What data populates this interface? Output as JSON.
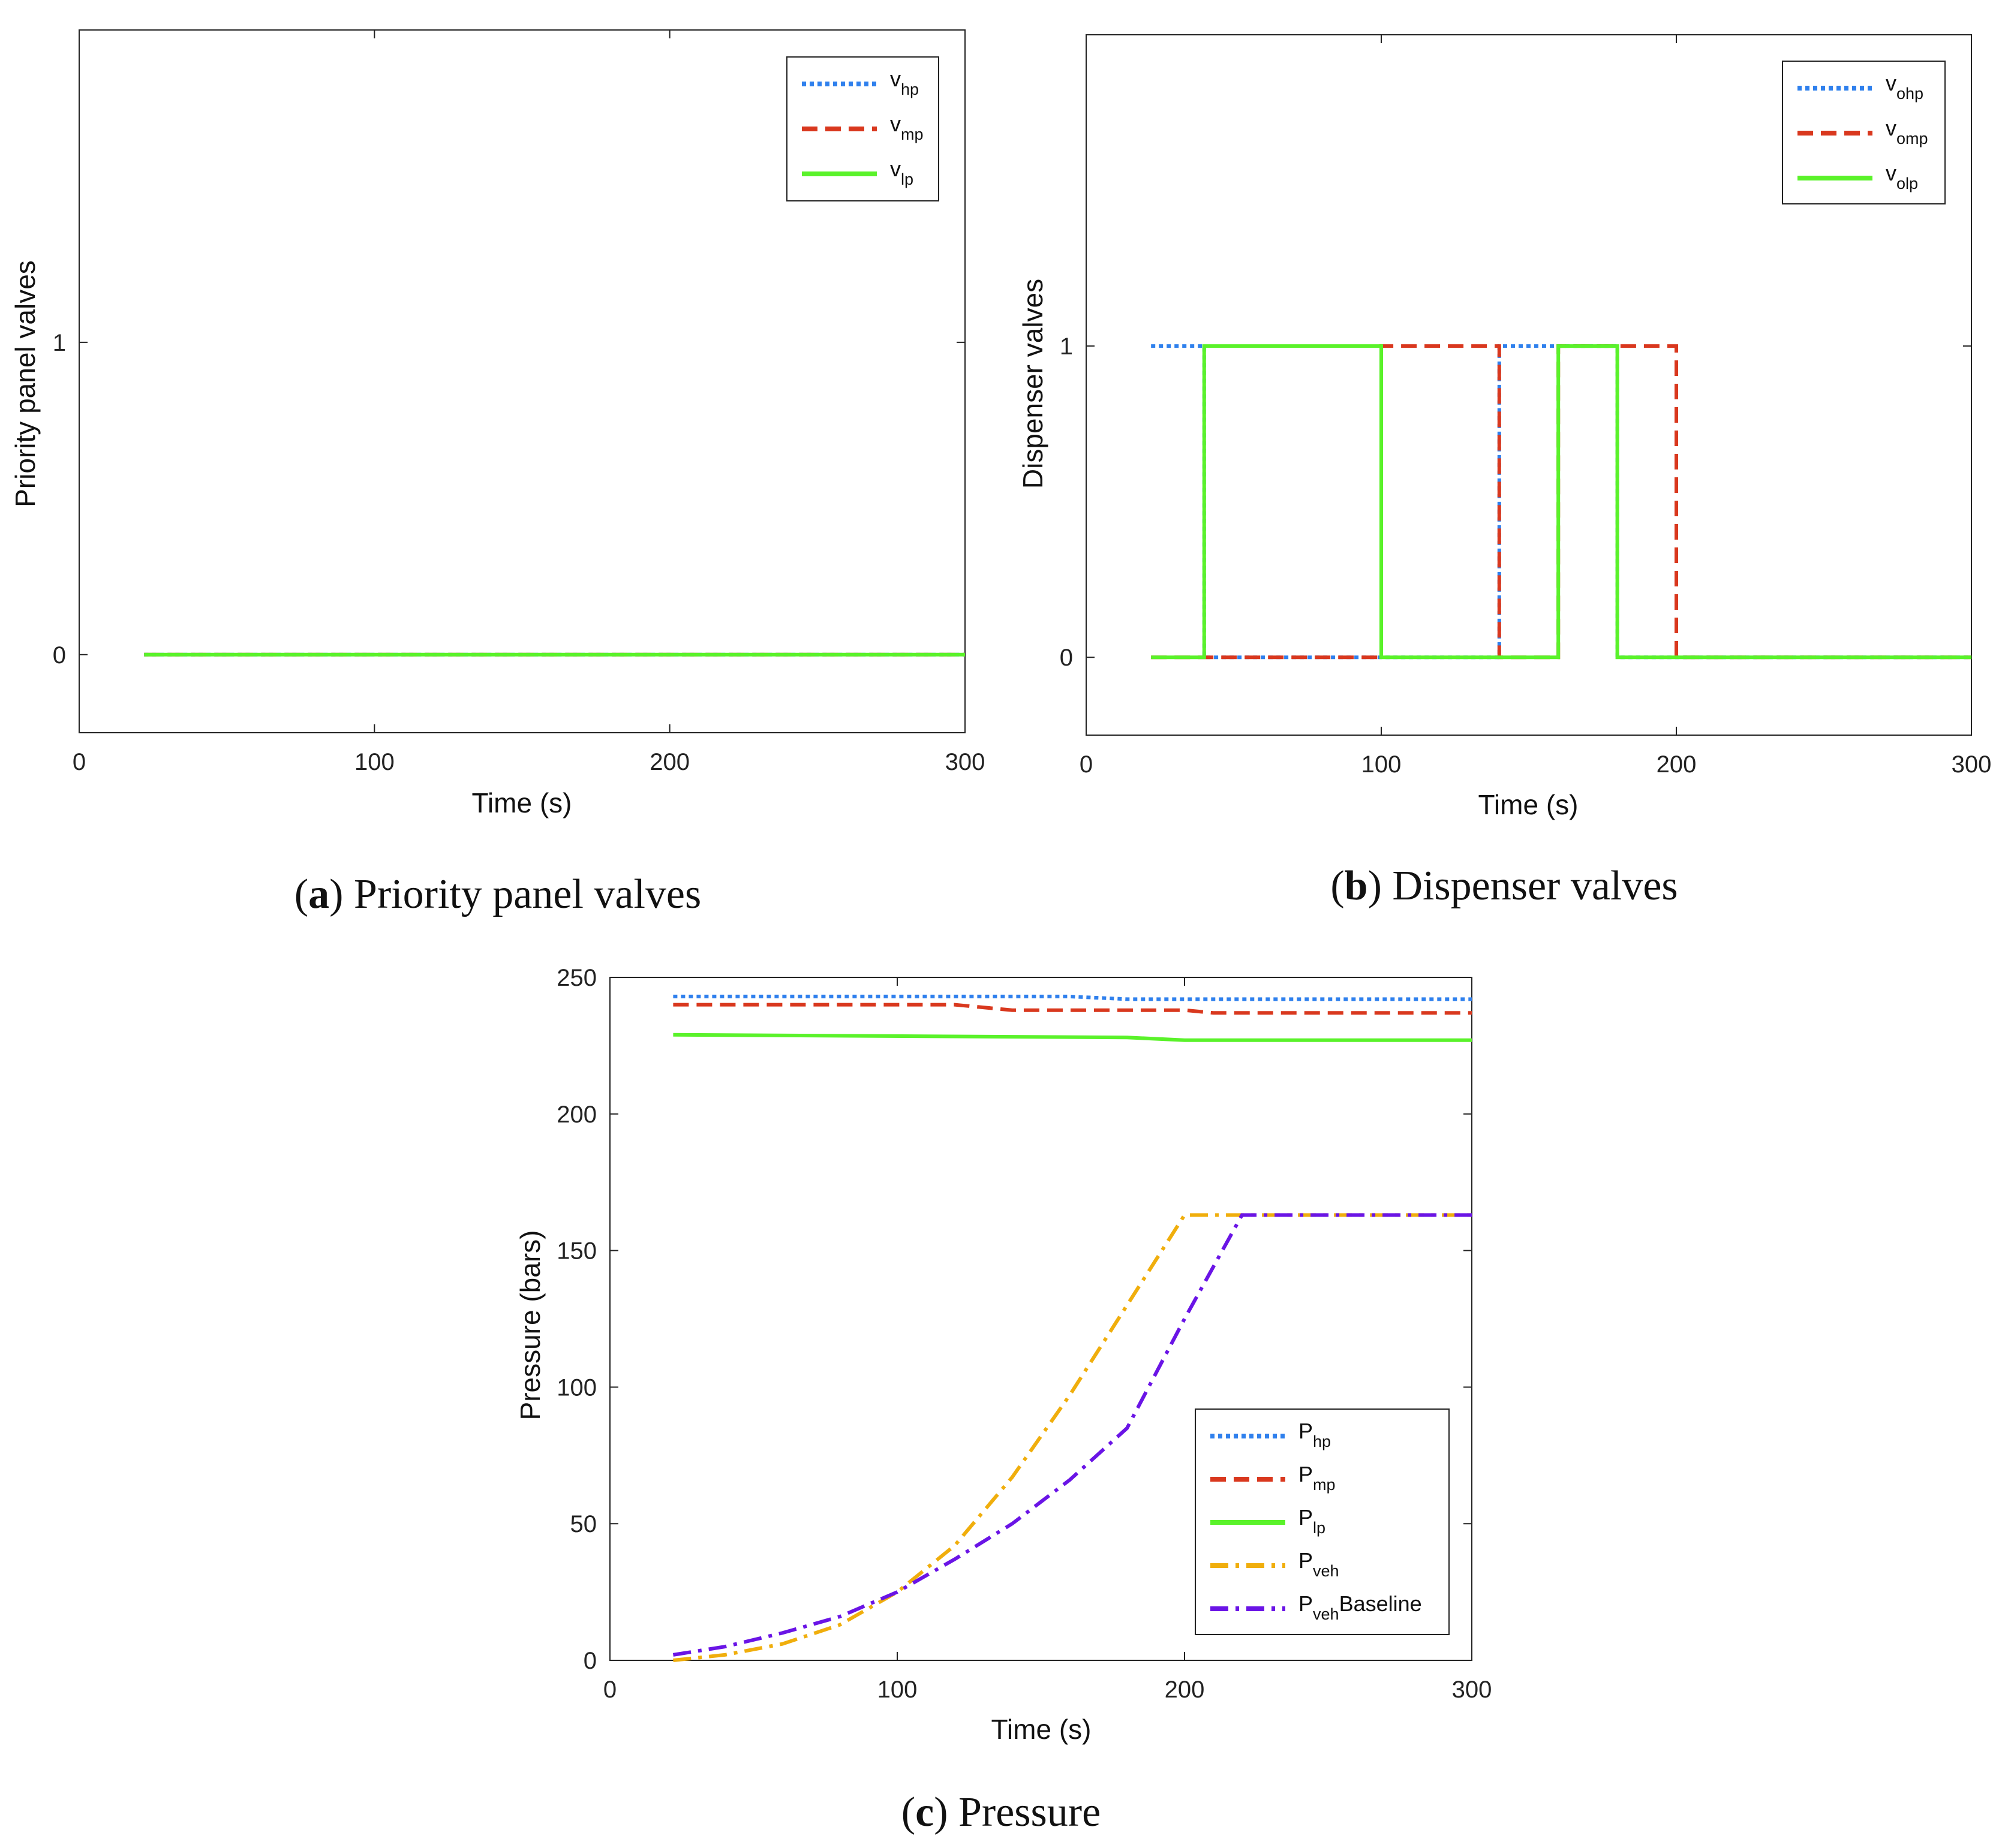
{
  "colors": {
    "blue": "#2f80ed",
    "red": "#d9381e",
    "green": "#5af22a",
    "orange": "#f0ae0c",
    "purple": "#6a14e6"
  },
  "chart_data": [
    {
      "id": "a",
      "type": "line",
      "ylabel": "Priority panel valves",
      "xlabel": "Time (s)",
      "xlim": [
        0,
        300
      ],
      "ylim": [
        -0.25,
        2
      ],
      "xticks": [
        "0",
        "100",
        "200",
        "300"
      ],
      "yticks": [
        "0",
        "1"
      ],
      "caption_letter": "a",
      "caption_text": " Priority panel valves",
      "legend_position": "top-right",
      "series": [
        {
          "name": "v",
          "sub": "hp",
          "color": "blue",
          "style": "dotted",
          "x": [
            22,
            300
          ],
          "y": [
            0,
            0
          ]
        },
        {
          "name": "v",
          "sub": "mp",
          "color": "red",
          "style": "dashed",
          "x": [
            22,
            300
          ],
          "y": [
            0,
            0
          ]
        },
        {
          "name": "v",
          "sub": "lp",
          "color": "green",
          "style": "solid",
          "x": [
            22,
            300
          ],
          "y": [
            0,
            0
          ]
        }
      ]
    },
    {
      "id": "b",
      "type": "line",
      "ylabel": "Dispenser valves",
      "xlabel": "Time (s)",
      "xlim": [
        0,
        300
      ],
      "ylim": [
        -0.25,
        2
      ],
      "xticks": [
        "0",
        "100",
        "200",
        "300"
      ],
      "yticks": [
        "0",
        "1"
      ],
      "caption_letter": "b",
      "caption_text": " Dispenser valves",
      "legend_position": "top-right",
      "series": [
        {
          "name": "v",
          "sub": "ohp",
          "color": "blue",
          "style": "dotted",
          "x": [
            22,
            40,
            40,
            140,
            140,
            180,
            180,
            300
          ],
          "y": [
            1,
            1,
            0,
            0,
            1,
            1,
            0,
            0
          ]
        },
        {
          "name": "v",
          "sub": "omp",
          "color": "red",
          "style": "dashed",
          "x": [
            22,
            40,
            40,
            100,
            100,
            140,
            140,
            160,
            160,
            200,
            200,
            300
          ],
          "y": [
            0,
            0,
            0,
            0,
            1,
            1,
            0,
            0,
            1,
            1,
            0,
            0
          ]
        },
        {
          "name": "v",
          "sub": "olp",
          "color": "green",
          "style": "solid",
          "x": [
            22,
            40,
            40,
            100,
            100,
            160,
            160,
            180,
            180,
            300
          ],
          "y": [
            0,
            0,
            1,
            1,
            0,
            0,
            1,
            1,
            0,
            0
          ]
        }
      ]
    },
    {
      "id": "c",
      "type": "line",
      "ylabel": "Pressure (bars)",
      "xlabel": "Time (s)",
      "xlim": [
        0,
        300
      ],
      "ylim": [
        0,
        250
      ],
      "xticks": [
        "0",
        "100",
        "200",
        "300"
      ],
      "yticks": [
        "0",
        "50",
        "100",
        "150",
        "200",
        "250"
      ],
      "caption_letter": "c",
      "caption_text": " Pressure",
      "legend_position": "bottom-right",
      "series": [
        {
          "name": "P",
          "sub": "hp",
          "suffix": "",
          "color": "blue",
          "style": "dotted",
          "x": [
            22,
            160,
            180,
            300
          ],
          "y": [
            243,
            243,
            242,
            242
          ]
        },
        {
          "name": "P",
          "sub": "mp",
          "suffix": "",
          "color": "red",
          "style": "dashed",
          "x": [
            22,
            120,
            140,
            200,
            210,
            300
          ],
          "y": [
            240,
            240,
            238,
            238,
            237,
            237
          ]
        },
        {
          "name": "P",
          "sub": "lp",
          "suffix": "",
          "color": "green",
          "style": "solid",
          "x": [
            22,
            180,
            200,
            300
          ],
          "y": [
            229,
            228,
            227,
            227
          ]
        },
        {
          "name": "P",
          "sub": "veh",
          "suffix": "",
          "color": "orange",
          "style": "dashdot",
          "x": [
            22,
            40,
            60,
            80,
            100,
            120,
            140,
            160,
            180,
            200,
            300
          ],
          "y": [
            0,
            2,
            6,
            13,
            25,
            42,
            67,
            97,
            130,
            163,
            163
          ]
        },
        {
          "name": "P",
          "sub": "veh",
          "suffix": "Baseline",
          "color": "purple",
          "style": "dashdot",
          "x": [
            22,
            40,
            60,
            80,
            100,
            120,
            140,
            160,
            180,
            200,
            220,
            300
          ],
          "y": [
            2,
            5,
            10,
            16,
            25,
            37,
            50,
            66,
            85,
            125,
            163,
            163
          ]
        }
      ]
    }
  ]
}
